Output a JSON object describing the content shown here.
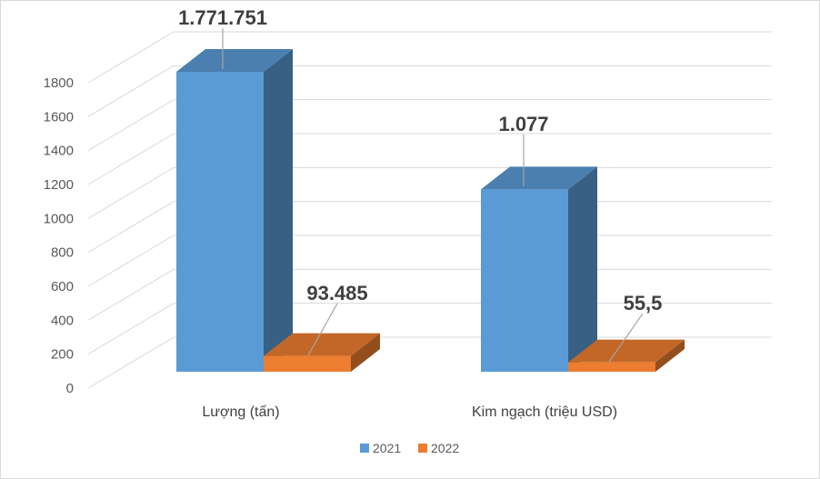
{
  "chart_data": {
    "type": "bar",
    "categories": [
      "Lượng (tấn)",
      "Kim ngạch (triệu USD)"
    ],
    "series": [
      {
        "name": "2021",
        "values": [
          1771.751,
          1077
        ],
        "labels": [
          "1.771.751",
          "1.077"
        ],
        "color": "#5B9BD5"
      },
      {
        "name": "2022",
        "values": [
          93.485,
          55.5
        ],
        "labels": [
          "93.485",
          "55,5"
        ],
        "color": "#ED7D31"
      }
    ],
    "yticks": [
      "0",
      "200",
      "400",
      "600",
      "800",
      "1000",
      "1200",
      "1400",
      "1600",
      "1800"
    ],
    "ylim": [
      0,
      1800
    ],
    "grid": true,
    "legend": "bottom",
    "three_d": true
  }
}
